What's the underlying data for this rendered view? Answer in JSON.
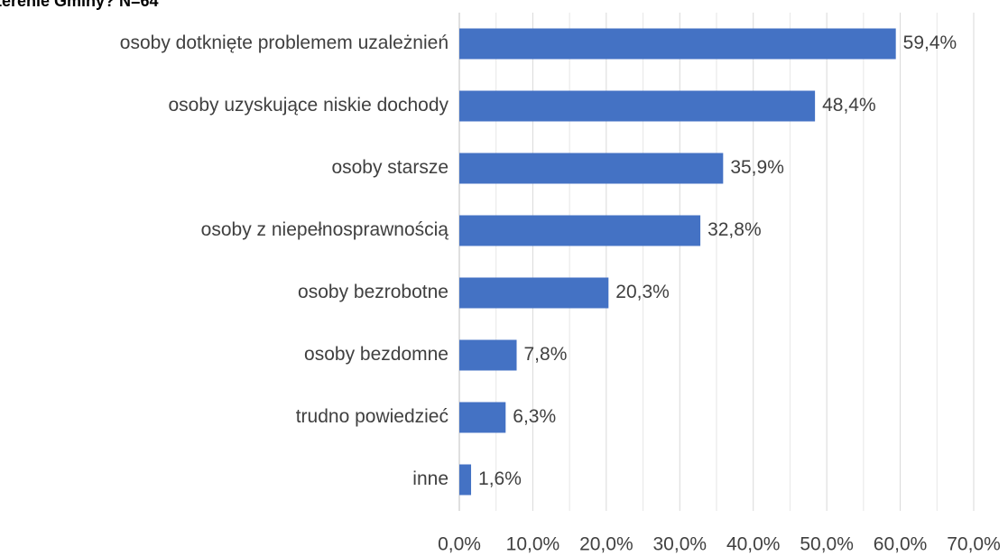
{
  "chart_data": {
    "type": "bar",
    "orientation": "horizontal",
    "title": "terenie Gminy? N=64",
    "categories": [
      "osoby dotknięte problemem uzależnień",
      "osoby uzyskujące niskie dochody",
      "osoby starsze",
      "osoby z niepełnosprawnością",
      "osoby bezrobotne",
      "osoby bezdomne",
      "trudno powiedzieć",
      "inne"
    ],
    "values": [
      59.4,
      48.4,
      35.9,
      32.8,
      20.3,
      7.8,
      6.3,
      1.6
    ],
    "value_labels": [
      "59,4%",
      "48,4%",
      "35,9%",
      "32,8%",
      "20,3%",
      "7,8%",
      "6,3%",
      "1,6%"
    ],
    "color": "#4472c4",
    "xlim": [
      0,
      70
    ],
    "xticks": [
      {
        "value": 0,
        "label": "0,0%"
      },
      {
        "value": 10,
        "label": "10,0%"
      },
      {
        "value": 20,
        "label": "20,0%"
      },
      {
        "value": 30,
        "label": "30,0%"
      },
      {
        "value": 40,
        "label": "40,0%"
      },
      {
        "value": 50,
        "label": "50,0%"
      },
      {
        "value": 60,
        "label": "60,0%"
      },
      {
        "value": 70,
        "label": "70,0%"
      }
    ],
    "minor_xticks": [
      5,
      15,
      25,
      35,
      45,
      55,
      65
    ],
    "grid": true
  }
}
